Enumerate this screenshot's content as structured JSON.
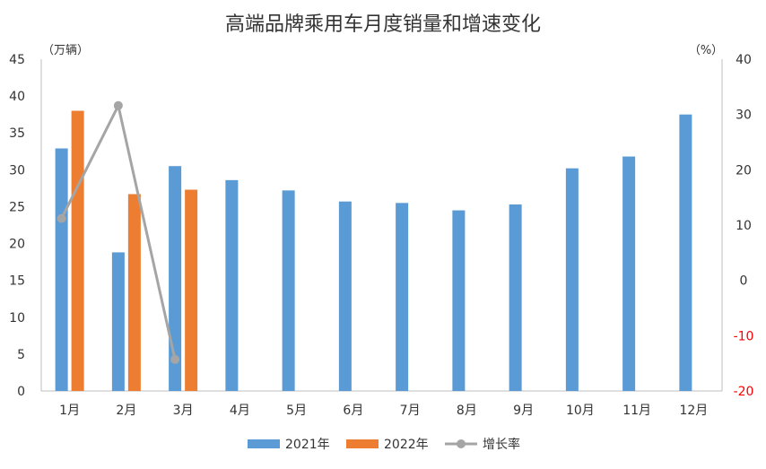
{
  "chart_data": {
    "type": "bar",
    "title": "高端品牌乘用车月度销量和增速变化",
    "ylabel_left_unit": "（万辆）",
    "ylabel_right_unit": "（%）",
    "categories": [
      "1月",
      "2月",
      "3月",
      "4月",
      "5月",
      "6月",
      "7月",
      "8月",
      "9月",
      "10月",
      "11月",
      "12月"
    ],
    "series": [
      {
        "name": "2021年",
        "kind": "bar",
        "axis": "left",
        "color": "#5B9BD5",
        "values": [
          32.9,
          18.8,
          30.5,
          28.6,
          27.2,
          25.7,
          25.5,
          24.5,
          25.3,
          30.2,
          31.8,
          37.5
        ]
      },
      {
        "name": "2022年",
        "kind": "bar",
        "axis": "left",
        "color": "#ED7D31",
        "values": [
          38.0,
          26.7,
          27.3,
          null,
          null,
          null,
          null,
          null,
          null,
          null,
          null,
          null
        ]
      },
      {
        "name": "增长率",
        "kind": "line",
        "axis": "right",
        "color": "#A5A5A5",
        "values": [
          11.2,
          31.6,
          -14.3,
          null,
          null,
          null,
          null,
          null,
          null,
          null,
          null,
          null
        ]
      }
    ],
    "ylim_left": [
      0,
      45
    ],
    "yticks_left": [
      0,
      5,
      10,
      15,
      20,
      25,
      30,
      35,
      40,
      45
    ],
    "ylim_right": [
      -20,
      40
    ],
    "yticks_right": [
      -20,
      -10,
      0,
      10,
      20,
      30,
      40
    ],
    "negative_tick_color": "#FF0000",
    "grid": false,
    "legend_position": "bottom-center"
  }
}
